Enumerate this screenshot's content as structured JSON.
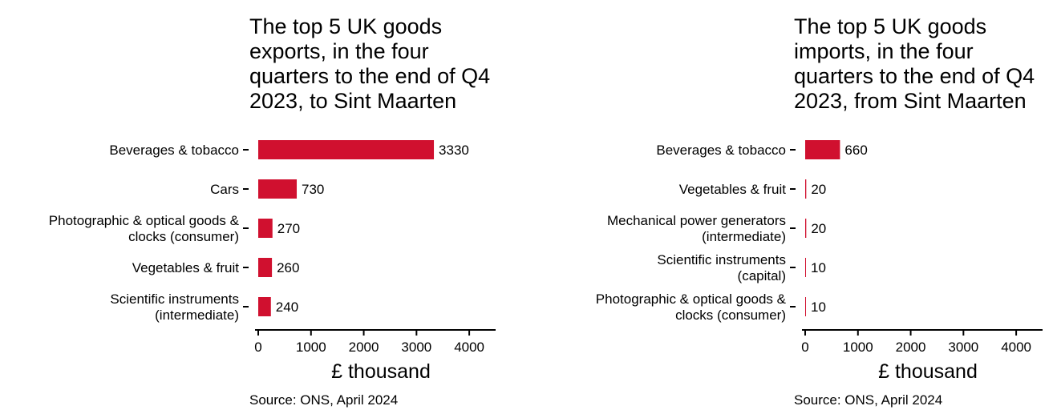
{
  "charts": [
    {
      "id": "exports",
      "title": "The top 5 UK goods\nexports, in the four\nquarters to the end of Q4\n2023, to Sint Maarten",
      "source": "Source: ONS, April 2024"
    },
    {
      "id": "imports",
      "title": "The top 5 UK goods\nimports, in the four\nquarters to the end of Q4\n2023, from Sint Maarten",
      "source": "Source: ONS, April 2024"
    }
  ],
  "chart_data": [
    {
      "type": "bar",
      "orientation": "horizontal",
      "title": "The top 5 UK goods exports, in the four quarters to the end of Q4 2023, to Sint Maarten",
      "categories": [
        [
          "Beverages & tobacco"
        ],
        [
          "Cars"
        ],
        [
          "Photographic & optical goods &",
          "clocks (consumer)"
        ],
        [
          "Vegetables & fruit"
        ],
        [
          "Scientific instruments",
          "(intermediate)"
        ]
      ],
      "values": [
        3330,
        730,
        270,
        260,
        240
      ],
      "data_labels": [
        "3330",
        "730",
        "270",
        "260",
        "240"
      ],
      "xlabel": "£ thousand",
      "xlim": [
        0,
        4500
      ],
      "xticks": [
        0,
        1000,
        2000,
        3000,
        4000
      ],
      "bar_color": "#d0102f",
      "grid": false,
      "legend": "none"
    },
    {
      "type": "bar",
      "orientation": "horizontal",
      "title": "The top 5 UK goods imports, in the four quarters to the end of Q4 2023, from Sint Maarten",
      "categories": [
        [
          "Beverages & tobacco"
        ],
        [
          "Vegetables & fruit"
        ],
        [
          "Mechanical power generators",
          "(intermediate)"
        ],
        [
          "Scientific instruments",
          "(capital)"
        ],
        [
          "Photographic & optical goods &",
          "clocks (consumer)"
        ]
      ],
      "values": [
        660,
        20,
        20,
        10,
        10
      ],
      "data_labels": [
        "660",
        "20",
        "20",
        "10",
        "10"
      ],
      "xlabel": "£ thousand",
      "xlim": [
        0,
        4500
      ],
      "xticks": [
        0,
        1000,
        2000,
        3000,
        4000
      ],
      "bar_color": "#d0102f",
      "grid": false,
      "legend": "none"
    }
  ]
}
